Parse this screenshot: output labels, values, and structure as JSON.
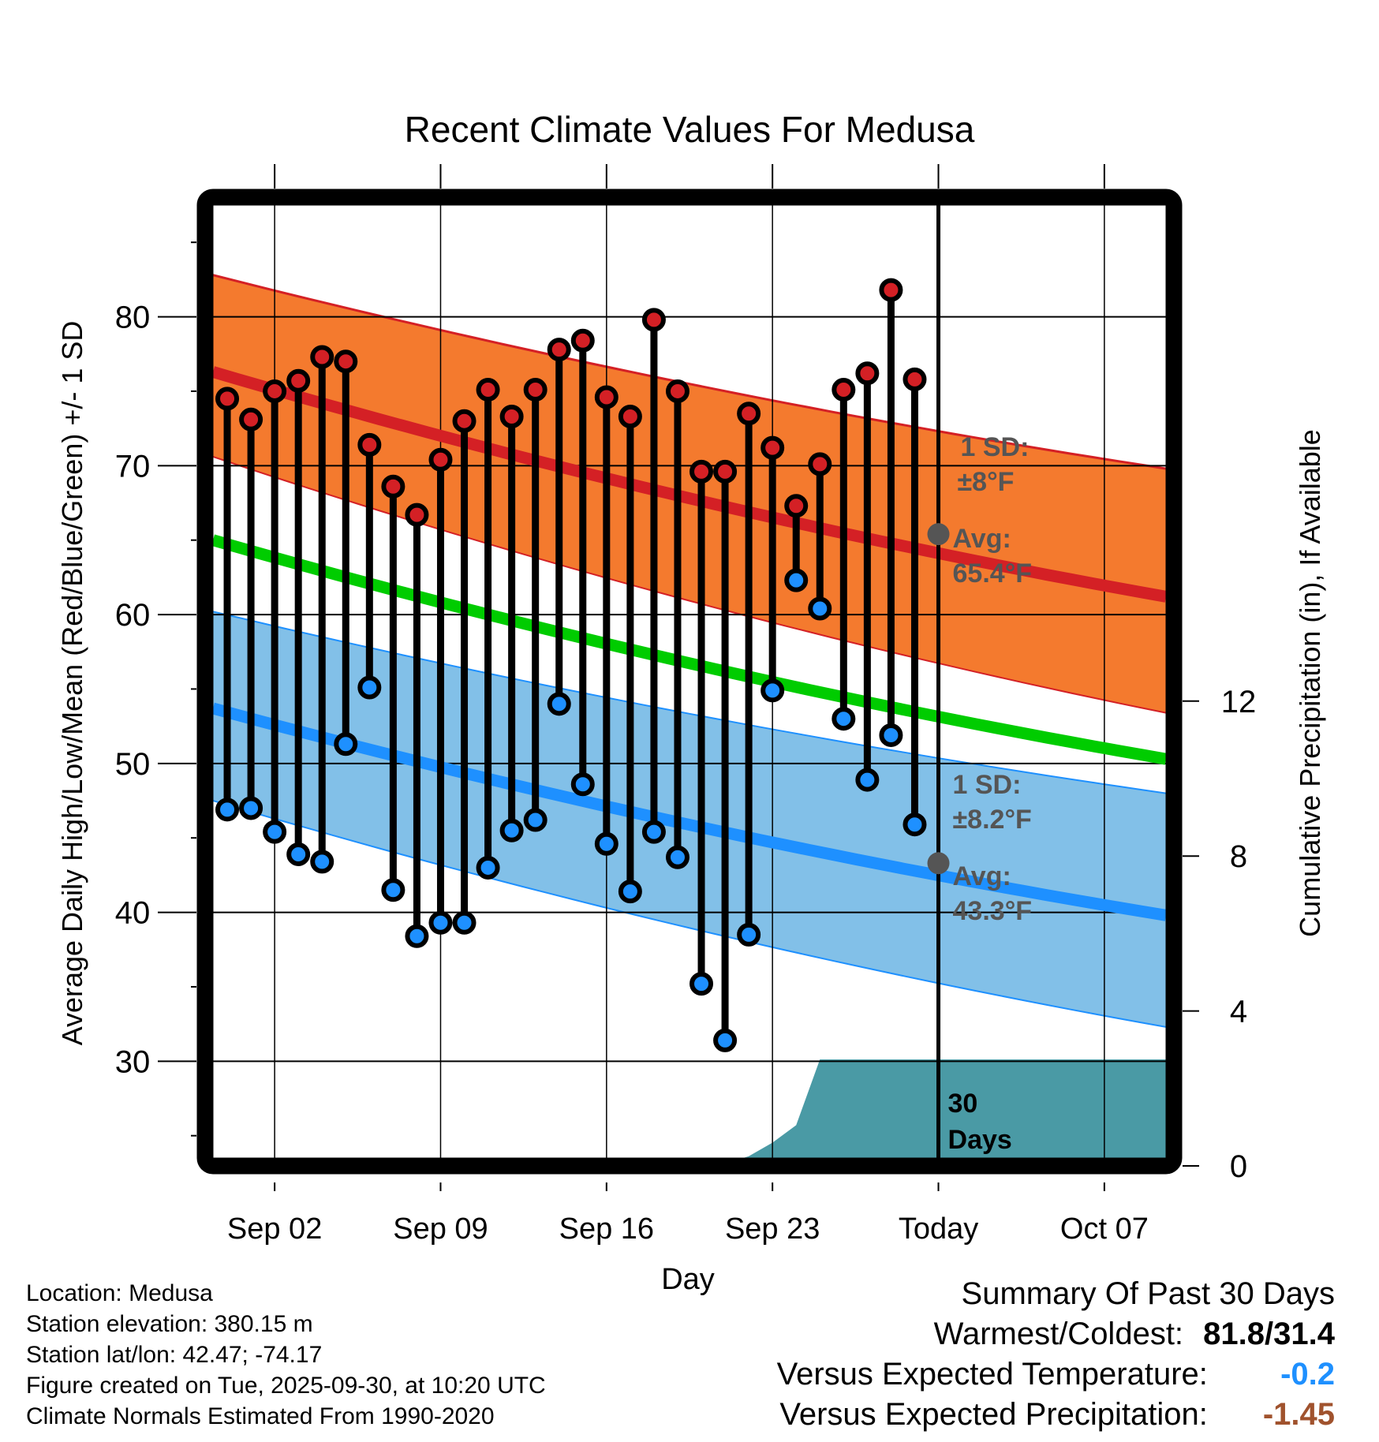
{
  "chart_data": {
    "type": "line",
    "title": "Recent Climate Values For Medusa",
    "xlabel": "Day",
    "ylabel": "Average Daily High/Low/Mean (Red/Blue/Green) +/- 1 SD",
    "y2label": "Cumulative Precipitation (in), If Available",
    "ylim": [
      23.5,
      87.5
    ],
    "y2lim": [
      0,
      15.2
    ],
    "yticks": [
      30,
      40,
      50,
      60,
      70,
      80
    ],
    "y2ticks": [
      0,
      4,
      8,
      12
    ],
    "xlim_days": [
      -0.6,
      39.6
    ],
    "xticks": [
      {
        "day": 2,
        "label": "Sep 02"
      },
      {
        "day": 9,
        "label": "Sep 09"
      },
      {
        "day": 16,
        "label": "Sep 16"
      },
      {
        "day": 23,
        "label": "Sep 23"
      },
      {
        "day": 30,
        "label": "Today"
      },
      {
        "day": 37,
        "label": "Oct 07"
      }
    ],
    "x_day_origin": "Aug 31",
    "grid": true,
    "today_day": 30,
    "series": [
      {
        "name": "Daily High",
        "color": "#D42025",
        "values": [
          74.5,
          73.1,
          75.0,
          75.7,
          77.3,
          77.0,
          71.4,
          68.6,
          66.7,
          70.4,
          73.0,
          75.1,
          73.3,
          75.1,
          77.8,
          78.4,
          74.6,
          73.3,
          79.8,
          75.0,
          69.6,
          69.6,
          73.5,
          71.2,
          67.3,
          70.1,
          75.1,
          76.2,
          81.8,
          75.8
        ]
      },
      {
        "name": "Daily Low",
        "color": "#1E90FF",
        "values": [
          46.9,
          47.0,
          45.4,
          43.9,
          43.4,
          51.3,
          55.1,
          41.5,
          38.4,
          39.3,
          39.3,
          43.0,
          45.5,
          46.2,
          54.0,
          48.6,
          44.6,
          41.4,
          45.4,
          43.7,
          35.2,
          31.4,
          38.5,
          54.9,
          62.3,
          60.4,
          53.0,
          48.9,
          51.9,
          45.9
        ]
      }
    ],
    "normals": {
      "high_avg": {
        "color": "#D42025",
        "start": 76.3,
        "end": 61.2
      },
      "high_band": {
        "color": "#F47A2E",
        "sd": 8,
        "upper_start": 82.8,
        "upper_end": 69.8,
        "lower_start": 70.6,
        "lower_end": 53.4
      },
      "mean_avg": {
        "color": "#00CC00",
        "start": 65.0,
        "end": 50.3
      },
      "low_avg": {
        "color": "#1E90FF",
        "start": 53.7,
        "end": 39.8
      },
      "low_band": {
        "color": "#82C0E8",
        "sd": 8.2,
        "upper_start": 60.2,
        "upper_end": 48.0,
        "lower_start": 47.5,
        "lower_end": 32.3
      }
    },
    "precipitation": {
      "color": "#4A9AA5",
      "days": [
        -0.6,
        5.5,
        21.0,
        22.0,
        23.0,
        24.0,
        25.0,
        39.6
      ],
      "values": [
        0.0,
        0.05,
        0.05,
        0.25,
        0.6,
        1.05,
        2.75,
        2.75
      ]
    },
    "annotations": {
      "high_sd": "1 SD:",
      "high_sd_val": "±8°F",
      "high_avg": "Avg:",
      "high_avg_val": "65.4°F",
      "low_sd": "1 SD:",
      "low_sd_val": "±8.2°F",
      "low_avg": "Avg:",
      "low_avg_val": "43.3°F",
      "today_high_marker": 65.4,
      "today_low_marker": 43.3,
      "precip_label_1": "30",
      "precip_label_2": "Days",
      "annotation_color": "#555555"
    }
  },
  "footer": {
    "lines": [
      "Location: Medusa",
      "Station elevation: 380.15 m",
      "Station lat/lon: 42.47; -74.17",
      "Figure created on Tue, 2025-09-30, at 10:20 UTC",
      "Climate Normals Estimated From 1990-2020"
    ]
  },
  "summary": {
    "title": "Summary Of Past 30 Days",
    "warmest_label": "Warmest/Coldest:",
    "warmest_value": "81.8/31.4",
    "temp_label": "Versus Expected Temperature:",
    "temp_value": "-0.2",
    "temp_color": "#1E90FF",
    "precip_label": "Versus Expected Precipitation:",
    "precip_value": "-1.45",
    "precip_color": "#A0522D"
  }
}
